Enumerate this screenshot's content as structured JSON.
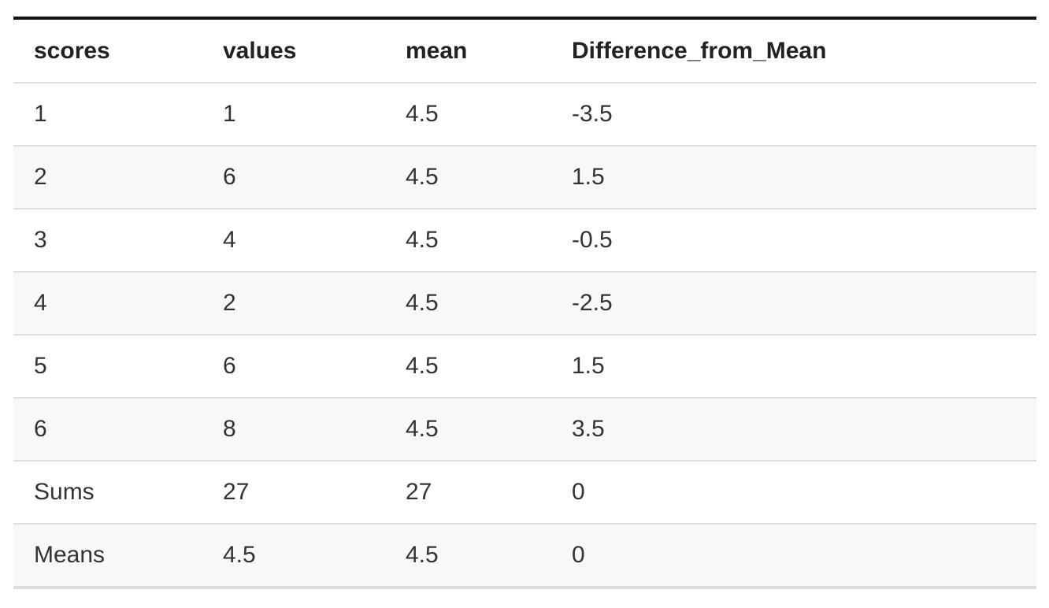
{
  "table": {
    "columns": [
      "scores",
      "values",
      "mean",
      "Difference_from_Mean"
    ],
    "rows": [
      [
        "1",
        "1",
        "4.5",
        "-3.5"
      ],
      [
        "2",
        "6",
        "4.5",
        "1.5"
      ],
      [
        "3",
        "4",
        "4.5",
        "-0.5"
      ],
      [
        "4",
        "2",
        "4.5",
        "-2.5"
      ],
      [
        "5",
        "6",
        "4.5",
        "1.5"
      ],
      [
        "6",
        "8",
        "4.5",
        "3.5"
      ],
      [
        "Sums",
        "27",
        "27",
        "0"
      ],
      [
        "Means",
        "4.5",
        "4.5",
        "0"
      ]
    ]
  }
}
